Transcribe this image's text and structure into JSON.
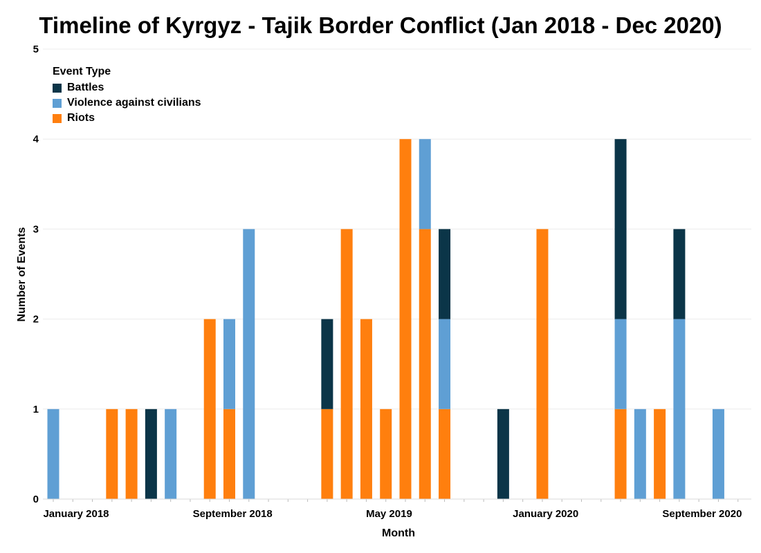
{
  "chart_data": {
    "type": "bar",
    "stacked": true,
    "title": "Timeline of Kyrgyz - Tajik Border Conflict (Jan 2018 - Dec 2020)",
    "xlabel": "Month",
    "ylabel": "Number of Events",
    "ylim": [
      0,
      5
    ],
    "y_ticks": [
      0,
      1,
      2,
      3,
      4,
      5
    ],
    "x_tick_labels": [
      "January 2018",
      "September 2018",
      "May 2019",
      "January 2020",
      "September 2020"
    ],
    "categories": [
      "2018-01",
      "2018-02",
      "2018-03",
      "2018-04",
      "2018-05",
      "2018-06",
      "2018-07",
      "2018-08",
      "2018-09",
      "2018-10",
      "2018-11",
      "2018-12",
      "2019-01",
      "2019-02",
      "2019-03",
      "2019-04",
      "2019-05",
      "2019-06",
      "2019-07",
      "2019-08",
      "2019-09",
      "2019-10",
      "2019-11",
      "2019-12",
      "2020-01",
      "2020-02",
      "2020-03",
      "2020-04",
      "2020-05",
      "2020-06",
      "2020-07",
      "2020-08",
      "2020-09",
      "2020-10",
      "2020-11",
      "2020-12"
    ],
    "legend_title": "Event Type",
    "legend_position": "top-left",
    "grid": true,
    "series": [
      {
        "name": "Riots",
        "color": "#ff7f0e",
        "values": [
          0,
          0,
          0,
          1,
          1,
          0,
          0,
          0,
          2,
          1,
          0,
          0,
          0,
          0,
          1,
          3,
          2,
          1,
          4,
          3,
          1,
          0,
          0,
          0,
          0,
          3,
          0,
          0,
          0,
          1,
          0,
          1,
          0,
          0,
          0,
          0
        ]
      },
      {
        "name": "Violence against civilians",
        "color": "#5f9fd4",
        "values": [
          1,
          0,
          0,
          0,
          0,
          0,
          1,
          0,
          0,
          1,
          3,
          0,
          0,
          0,
          0,
          0,
          0,
          0,
          0,
          1,
          1,
          0,
          0,
          0,
          0,
          0,
          0,
          0,
          0,
          1,
          1,
          0,
          2,
          0,
          1,
          0
        ]
      },
      {
        "name": "Battles",
        "color": "#0b3548",
        "values": [
          0,
          0,
          0,
          0,
          0,
          1,
          0,
          0,
          0,
          0,
          0,
          0,
          0,
          0,
          1,
          0,
          0,
          0,
          0,
          0,
          1,
          0,
          0,
          1,
          0,
          0,
          0,
          0,
          0,
          2,
          0,
          0,
          1,
          0,
          0,
          0
        ]
      }
    ],
    "legend_order": [
      "Battles",
      "Violence against civilians",
      "Riots"
    ]
  }
}
